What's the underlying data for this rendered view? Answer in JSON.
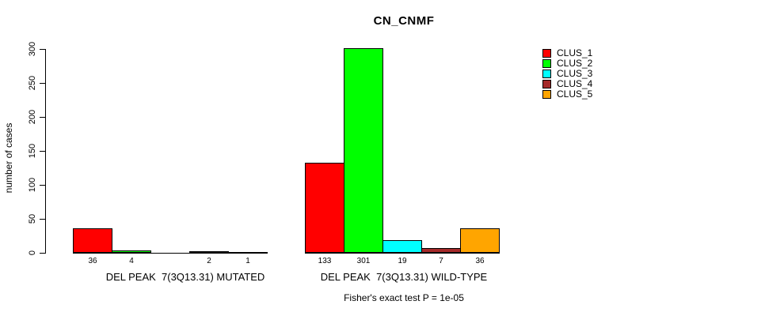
{
  "title": "CN_CNMF",
  "y_axis": {
    "label": "number of cases",
    "ticks": [
      0,
      50,
      100,
      150,
      200,
      250,
      300
    ],
    "max": 300
  },
  "legend": {
    "items": [
      {
        "label": "CLUS_1",
        "color": "#FF0000"
      },
      {
        "label": "CLUS_2",
        "color": "#00FF00"
      },
      {
        "label": "CLUS_3",
        "color": "#00FFFF"
      },
      {
        "label": "CLUS_4",
        "color": "#A52A2A"
      },
      {
        "label": "CLUS_5",
        "color": "#FFA500"
      }
    ]
  },
  "groups": [
    {
      "label": "DEL PEAK  7(3Q13.31) MUTATED"
    },
    {
      "label": "DEL PEAK  7(3Q13.31) WILD-TYPE"
    }
  ],
  "footnote": "Fisher's exact test P = 1e-05",
  "chart_data": {
    "type": "bar",
    "title": "CN_CNMF",
    "xlabel": "",
    "ylabel": "number of cases",
    "ylim": [
      0,
      300
    ],
    "yticks": [
      0,
      50,
      100,
      150,
      200,
      250,
      300
    ],
    "grid": false,
    "legend_position": "top-right",
    "categories": [
      "DEL PEAK 7(3Q13.31) MUTATED",
      "DEL PEAK 7(3Q13.31) WILD-TYPE"
    ],
    "series": [
      {
        "name": "CLUS_1",
        "color": "#FF0000",
        "values": [
          36,
          133
        ]
      },
      {
        "name": "CLUS_2",
        "color": "#00FF00",
        "values": [
          4,
          301
        ]
      },
      {
        "name": "CLUS_3",
        "color": "#00FFFF",
        "values": [
          0,
          19
        ]
      },
      {
        "name": "CLUS_4",
        "color": "#A52A2A",
        "values": [
          2,
          7
        ]
      },
      {
        "name": "CLUS_5",
        "color": "#FFA500",
        "values": [
          1,
          36
        ]
      }
    ],
    "bar_count_labels": [
      [
        "36",
        "4",
        "",
        "2",
        "1"
      ],
      [
        "133",
        "301",
        "19",
        "7",
        "36"
      ]
    ],
    "annotation": "Fisher's exact test P = 1e-05"
  }
}
